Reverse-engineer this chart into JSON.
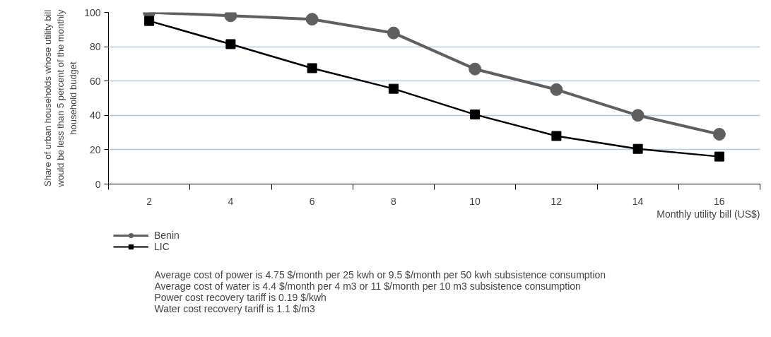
{
  "chart_data": {
    "type": "line",
    "ylabel": "Share of urban households whose utility bill\nwould be less than 5 percent of the monthly\nhousehold budget",
    "xlabel": "Monthly utility bill (US$)",
    "categories": [
      "2",
      "4",
      "6",
      "8",
      "10",
      "12",
      "14",
      "16"
    ],
    "series": [
      {
        "name": "Benin",
        "color": "#5f5f5f",
        "marker": "circle",
        "values": [
          100,
          98,
          96,
          88,
          67,
          55,
          40,
          29
        ]
      },
      {
        "name": "LIC",
        "color": "#000000",
        "marker": "square",
        "values": [
          95,
          81.5,
          67.5,
          55.5,
          40.5,
          28,
          20.5,
          16
        ]
      }
    ],
    "ylim": [
      0,
      100
    ],
    "yticks": [
      0,
      20,
      40,
      60,
      80,
      100
    ],
    "grid": "y",
    "legend": "bottom left",
    "annotations": [
      "Average cost of power is 4.75 $/month per 25 kwh or 9.5 $/month per 50 kwh subsistence consumption",
      "Average cost of water is 4.4 $/month per 4 m3 or 11 $/month per 10 m3 subsistence consumption",
      "Power cost recovery tariff is 0.19 $/kwh",
      "Water cost recovery tariff is 1.1 $/m3"
    ]
  }
}
